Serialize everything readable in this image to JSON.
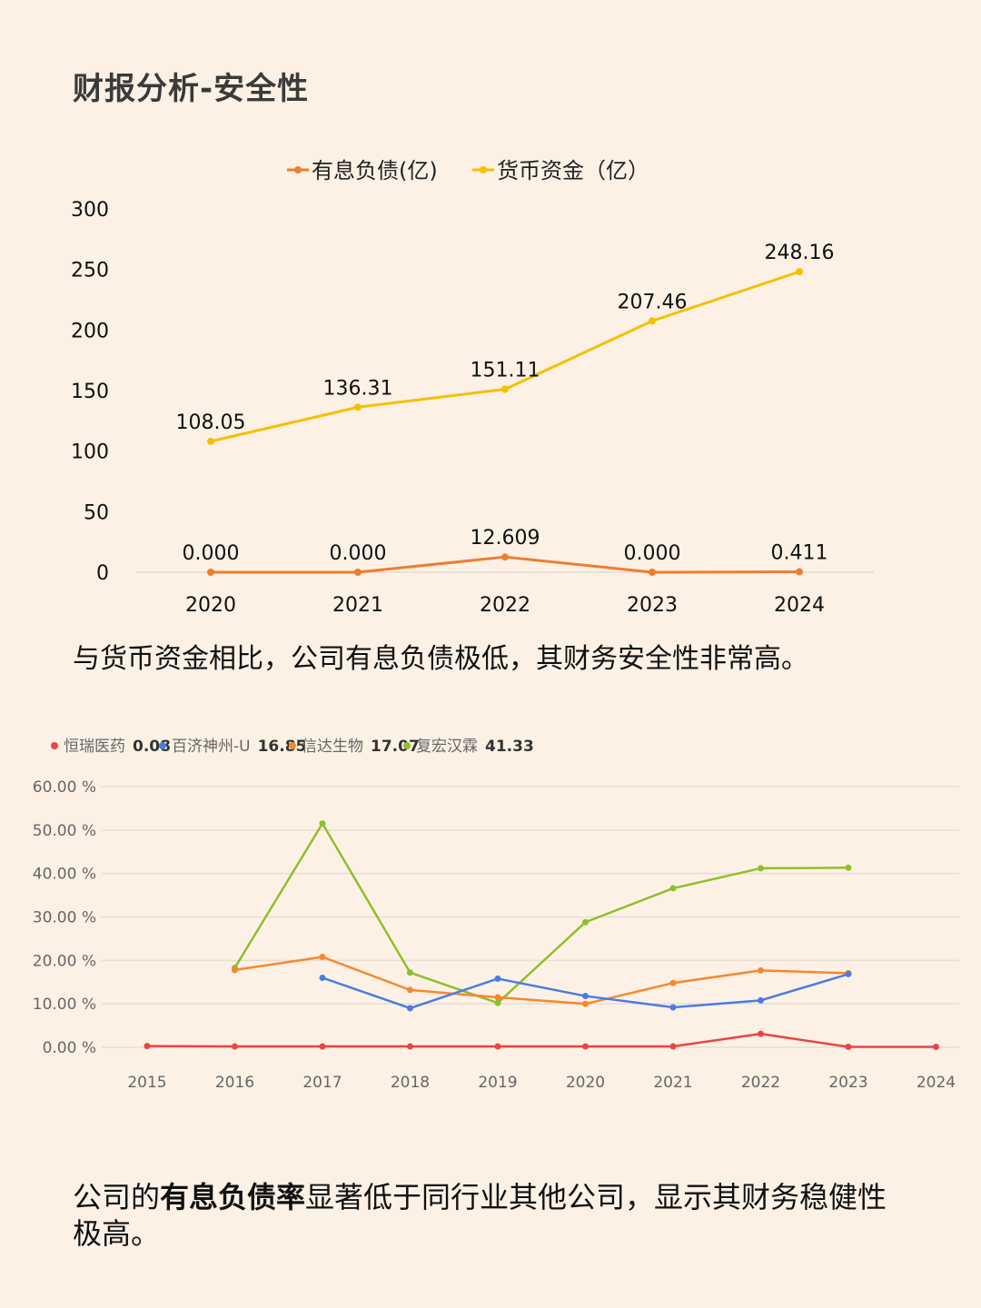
{
  "page": {
    "title": "财报分析-安全性",
    "caption1": "与货币资金相比，公司有息负债极低，其财务安全性非常高。",
    "caption2_pre": "公司的",
    "caption2_bold": "有息负债率",
    "caption2_post": "显著低于同行业其他公司，显示其财务稳健性极高。"
  },
  "chart_data": [
    {
      "type": "line",
      "categories": [
        "2020",
        "2021",
        "2022",
        "2023",
        "2024"
      ],
      "series": [
        {
          "name": "有息负债(亿)",
          "color": "#ed7d31",
          "values": [
            0.0,
            0.0,
            12.609,
            0.0,
            0.411
          ],
          "labels": [
            "0.000",
            "0.000",
            "12.609",
            "0.000",
            "0.411"
          ]
        },
        {
          "name": "货币资金（亿）",
          "color": "#f5c000",
          "values": [
            108.05,
            136.31,
            151.11,
            207.46,
            248.16
          ],
          "labels": [
            "108.05",
            "136.31",
            "151.11",
            "207.46",
            "248.16"
          ]
        }
      ],
      "ylim": [
        0,
        300
      ],
      "yticks": [
        "0",
        "50",
        "100",
        "150",
        "200",
        "250",
        "300"
      ],
      "legend": "top-center",
      "grid": false
    },
    {
      "type": "line",
      "categories": [
        "2015",
        "2016",
        "2017",
        "2018",
        "2019",
        "2020",
        "2021",
        "2022",
        "2023",
        "2024"
      ],
      "series": [
        {
          "name": "恒瑞医药",
          "legend_value": "0.08",
          "color": "#e84545",
          "values": [
            0.3,
            0.2,
            0.2,
            0.2,
            0.2,
            0.2,
            0.2,
            3.1,
            0.1,
            0.1
          ]
        },
        {
          "name": "百济神州-U",
          "legend_value": "16.85",
          "color": "#4a7de0",
          "values": [
            null,
            null,
            16.0,
            9.0,
            15.8,
            11.8,
            9.2,
            10.8,
            16.85,
            null
          ]
        },
        {
          "name": "信达生物",
          "legend_value": "17.07",
          "color": "#f7872e",
          "values": [
            null,
            17.8,
            20.8,
            13.2,
            11.5,
            10.0,
            14.8,
            17.7,
            17.07,
            null
          ]
        },
        {
          "name": "复宏汉霖",
          "legend_value": "41.33",
          "color": "#8dc02d",
          "values": [
            null,
            18.3,
            51.5,
            17.2,
            10.2,
            28.8,
            36.6,
            41.2,
            41.33,
            null
          ]
        }
      ],
      "ylim": [
        0,
        60
      ],
      "yticks": [
        "0.00 %",
        "10.00 %",
        "20.00 %",
        "30.00 %",
        "40.00 %",
        "50.00 %",
        "60.00 %"
      ],
      "legend": "top-left",
      "grid": true
    }
  ]
}
